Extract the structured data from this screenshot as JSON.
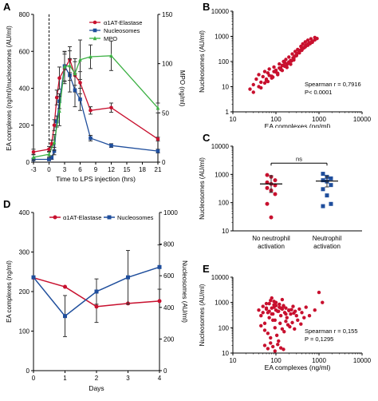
{
  "colors": {
    "red": "#c8102e",
    "blue": "#1f4e9c",
    "green": "#3cb043",
    "black": "#000000"
  },
  "panel_labels": {
    "A": "A",
    "B": "B",
    "C": "C",
    "D": "D",
    "E": "E"
  },
  "chart_data": [
    {
      "panel": "A",
      "type": "line",
      "xlabel": "Time to LPS injection (hrs)",
      "ylabel": "EA complexes (ng/ml)/nucleosomes (AU/ml)",
      "ylabel_right": "MPO (ng/ml)",
      "x_ticks": [
        -3,
        0,
        3,
        6,
        9,
        12,
        15,
        18,
        21
      ],
      "xlim": [
        -3,
        21
      ],
      "ylim": [
        0,
        800
      ],
      "y_ticks": [
        0,
        200,
        400,
        600,
        800
      ],
      "ylim_right": [
        0,
        150
      ],
      "y_ticks_right": [
        0,
        50,
        100,
        150
      ],
      "legend": "top-right",
      "vline_x": 0,
      "series": [
        {
          "name": "α1AT-Elastase",
          "color": "#c8102e",
          "marker": "circle",
          "axis": "left",
          "x": [
            -3,
            0,
            0.5,
            1,
            1.5,
            2,
            3,
            4,
            5,
            6,
            8,
            12,
            21
          ],
          "y": [
            55,
            70,
            100,
            200,
            350,
            455,
            505,
            555,
            470,
            430,
            280,
            295,
            125
          ],
          "err": [
            15,
            15,
            20,
            30,
            40,
            60,
            80,
            70,
            90,
            60,
            20,
            25,
            10
          ]
        },
        {
          "name": "Nucleosomes",
          "color": "#1f4e9c",
          "marker": "square",
          "axis": "left",
          "x": [
            -3,
            0,
            0.5,
            1,
            1.5,
            2,
            3,
            4,
            5,
            6,
            8,
            12,
            21
          ],
          "y": [
            15,
            15,
            25,
            60,
            220,
            330,
            520,
            470,
            390,
            340,
            130,
            90,
            60
          ],
          "err": [
            5,
            5,
            10,
            20,
            30,
            40,
            80,
            90,
            90,
            60,
            15,
            10,
            10
          ]
        },
        {
          "name": "MPO",
          "color": "#3cb043",
          "marker": "triangle",
          "axis": "right",
          "x": [
            -3,
            0,
            1,
            2,
            3,
            4,
            5,
            6,
            8,
            12,
            21
          ],
          "y": [
            5,
            8,
            20,
            52,
            97,
            98,
            90,
            104,
            107,
            108,
            55
          ],
          "err": [
            3,
            3,
            8,
            15,
            15,
            15,
            12,
            20,
            12,
            15,
            5
          ]
        }
      ]
    },
    {
      "panel": "B",
      "type": "scatter",
      "xlabel": "EA complexes (ng/ml)",
      "ylabel": "Nucleosomes (AU/ml)",
      "x_scale": "log",
      "y_scale": "log",
      "xlim": [
        10,
        10000
      ],
      "ylim": [
        1,
        10000
      ],
      "x_ticks": [
        10,
        100,
        1000,
        10000
      ],
      "y_ticks": [
        1,
        10,
        100,
        1000,
        10000
      ],
      "annotation": [
        "Spearman r = 0,7916",
        "P< 0.0001"
      ],
      "color": "#c8102e",
      "x": [
        25,
        30,
        35,
        40,
        45,
        50,
        55,
        60,
        65,
        70,
        80,
        90,
        100,
        110,
        120,
        130,
        140,
        150,
        160,
        170,
        180,
        200,
        220,
        240,
        260,
        280,
        300,
        320,
        350,
        380,
        400,
        420,
        450,
        480,
        500,
        550,
        600,
        650,
        700,
        800,
        30,
        40,
        55,
        70,
        90,
        120,
        150,
        200,
        250,
        300,
        350,
        400,
        500,
        600,
        700,
        800,
        900,
        60,
        80,
        100,
        130,
        160,
        190,
        230,
        270,
        310,
        360,
        420,
        480,
        550,
        620,
        700,
        45,
        65,
        85,
        110,
        140,
        180,
        220,
        260,
        300,
        340,
        380,
        430,
        490,
        560,
        640
      ],
      "y": [
        8,
        12,
        20,
        30,
        15,
        25,
        40,
        18,
        35,
        50,
        22,
        60,
        45,
        30,
        80,
        55,
        70,
        100,
        90,
        120,
        75,
        150,
        110,
        200,
        130,
        250,
        180,
        300,
        220,
        400,
        280,
        500,
        350,
        600,
        450,
        700,
        550,
        800,
        650,
        900,
        6,
        10,
        14,
        28,
        40,
        55,
        70,
        95,
        140,
        190,
        240,
        320,
        420,
        520,
        620,
        720,
        820,
        20,
        26,
        38,
        48,
        65,
        85,
        105,
        160,
        210,
        270,
        330,
        380,
        440,
        510,
        580,
        9,
        16,
        24,
        34,
        44,
        58,
        78,
        115,
        170,
        230,
        290,
        360,
        430,
        500,
        570
      ]
    },
    {
      "panel": "C",
      "type": "scatter",
      "ylabel": "Nucleosomes (AU/ml)",
      "y_scale": "log",
      "ylim": [
        10,
        10000
      ],
      "y_ticks": [
        10,
        100,
        1000,
        10000
      ],
      "categories": [
        "No neutrophil activation",
        "Neutrophil activation"
      ],
      "annotation": "ns",
      "groups": [
        {
          "name": "No neutrophil activation",
          "color": "#c8102e",
          "marker": "circle",
          "values": [
            950,
            820,
            620,
            520,
            460,
            410,
            330,
            270,
            200,
            90,
            30
          ],
          "mean": 460,
          "err_low": 230,
          "err_high": 900
        },
        {
          "name": "Neutrophil activation",
          "color": "#1f4e9c",
          "marker": "square",
          "values": [
            1050,
            820,
            720,
            620,
            560,
            420,
            300,
            180,
            90,
            75
          ],
          "mean": 580,
          "err_low": 360,
          "err_high": 850
        }
      ]
    },
    {
      "panel": "D",
      "type": "line",
      "xlabel": "Days",
      "ylabel": "EA complexes (ng/ml)",
      "ylabel_right": "Nucleosomes (AU/ml)",
      "xlim": [
        0,
        4
      ],
      "x_ticks": [
        0,
        1,
        2,
        3,
        4
      ],
      "ylim": [
        0,
        400
      ],
      "y_ticks": [
        0,
        100,
        200,
        300,
        400
      ],
      "ylim_right": [
        0,
        1000
      ],
      "y_ticks_right": [
        0,
        200,
        400,
        600,
        800,
        1000
      ],
      "legend": "top",
      "series": [
        {
          "name": "α1AT-Elastase",
          "color": "#c8102e",
          "marker": "circle",
          "axis": "left",
          "x": [
            0,
            1,
            2,
            3,
            4
          ],
          "y": [
            235,
            212,
            162,
            170,
            176
          ],
          "err": [
            0,
            0,
            40,
            0,
            0
          ]
        },
        {
          "name": "Nucleosomes",
          "color": "#1f4e9c",
          "marker": "square",
          "axis": "right",
          "x": [
            0,
            1,
            2,
            3,
            4
          ],
          "y": [
            590,
            345,
            500,
            590,
            655
          ],
          "err": [
            0,
            130,
            80,
            170,
            140
          ]
        }
      ]
    },
    {
      "panel": "E",
      "type": "scatter",
      "xlabel": "EA complexes (ng/ml)",
      "ylabel": "Nucleosomes (AU/ml)",
      "x_scale": "log",
      "y_scale": "log",
      "xlim": [
        10,
        10000
      ],
      "ylim": [
        10,
        10000
      ],
      "x_ticks": [
        10,
        100,
        1000,
        10000
      ],
      "y_ticks": [
        10,
        100,
        1000,
        10000
      ],
      "annotation": [
        "Spearman r = 0,155",
        "P = 0,1295"
      ],
      "color": "#c8102e",
      "x": [
        40,
        45,
        50,
        55,
        60,
        65,
        70,
        75,
        80,
        85,
        90,
        95,
        100,
        110,
        120,
        130,
        140,
        150,
        160,
        170,
        180,
        200,
        220,
        250,
        280,
        300,
        350,
        400,
        500,
        600,
        800,
        1000,
        1200,
        45,
        55,
        65,
        75,
        85,
        95,
        105,
        115,
        125,
        140,
        155,
        170,
        190,
        210,
        240,
        270,
        320,
        380,
        450,
        55,
        65,
        75,
        85,
        95,
        110,
        130,
        150,
        60,
        70,
        80,
        90,
        100,
        120,
        140,
        50,
        60,
        70,
        80,
        90,
        100,
        115,
        130,
        150,
        170,
        200,
        230,
        260
      ],
      "y": [
        500,
        300,
        700,
        150,
        900,
        400,
        250,
        1200,
        600,
        350,
        800,
        200,
        1000,
        450,
        650,
        300,
        550,
        750,
        400,
        600,
        250,
        500,
        350,
        700,
        450,
        300,
        550,
        400,
        650,
        300,
        500,
        2500,
        1000,
        120,
        80,
        60,
        40,
        200,
        100,
        50,
        30,
        150,
        90,
        70,
        180,
        130,
        110,
        160,
        90,
        200,
        140,
        250,
        20,
        15,
        25,
        18,
        12,
        22,
        16,
        14,
        600,
        900,
        1500,
        1100,
        750,
        850,
        1300,
        400,
        550,
        450,
        350,
        650,
        500,
        450,
        600,
        700,
        350,
        480,
        520,
        380
      ]
    }
  ]
}
